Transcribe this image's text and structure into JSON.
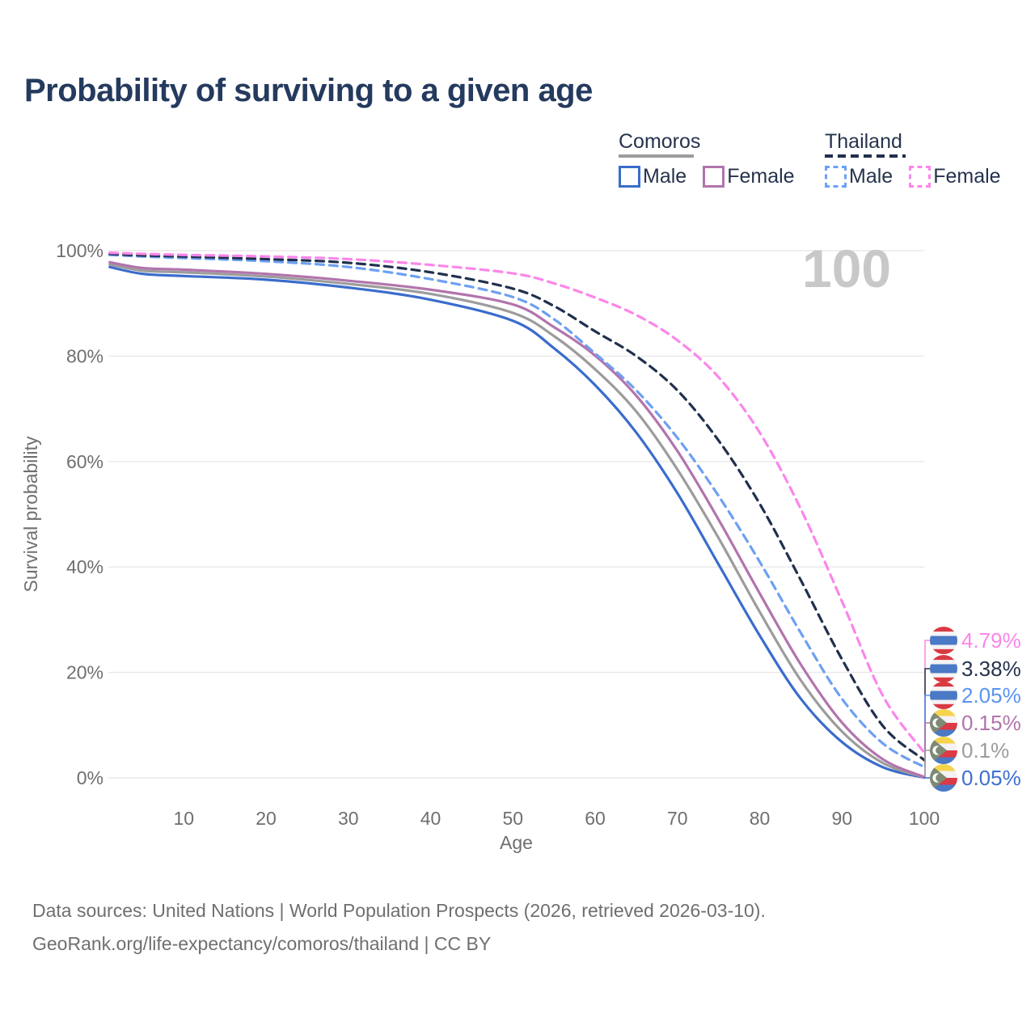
{
  "title": "Probability of surviving to a given age",
  "watermark": "100",
  "legend": {
    "comoros": {
      "title": "Comoros",
      "male_label": "Male",
      "female_label": "Female",
      "male_color": "#3a6ccc",
      "female_color": "#b274ac",
      "underline_color": "#9c9c9c",
      "underline_style": "solid"
    },
    "thailand": {
      "title": "Thailand",
      "male_label": "Male",
      "female_label": "Female",
      "male_color": "#6da0f2",
      "female_color": "#fb86ea",
      "underline_color": "#20304e",
      "underline_style": "dashed"
    }
  },
  "chart_data": {
    "type": "line",
    "title": "Probability of surviving to a given age",
    "xlabel": "Age",
    "ylabel": "Survival probability",
    "xlim": [
      0,
      100
    ],
    "ylim": [
      0,
      100
    ],
    "grid": true,
    "x_ticks": [
      10,
      20,
      30,
      40,
      50,
      60,
      70,
      80,
      90,
      100
    ],
    "y_ticks": [
      0,
      20,
      40,
      60,
      80,
      100
    ],
    "y_tick_suffix": "%",
    "x": [
      1,
      5,
      10,
      20,
      30,
      40,
      50,
      55,
      60,
      65,
      70,
      75,
      80,
      85,
      90,
      95,
      100
    ],
    "series": [
      {
        "name": "Comoros Male",
        "country": "comoros",
        "sex": "male",
        "style": "solid",
        "color": "#3a6ccc",
        "values": [
          96.9,
          95.6,
          95.2,
          94.5,
          93.0,
          90.7,
          86.7,
          81.5,
          74.5,
          65.5,
          54.0,
          40.5,
          27.0,
          15.0,
          6.8,
          2.0,
          0.05
        ]
      },
      {
        "name": "Comoros Both sexes",
        "country": "comoros",
        "sex": "both",
        "style": "solid",
        "color": "#9c9c9c",
        "values": [
          97.4,
          96.2,
          95.9,
          95.1,
          93.7,
          91.8,
          88.2,
          83.8,
          77.5,
          69.5,
          58.5,
          45.5,
          31.5,
          18.5,
          8.8,
          2.8,
          0.1
        ]
      },
      {
        "name": "Comoros Female",
        "country": "comoros",
        "sex": "female",
        "style": "solid",
        "color": "#b274ac",
        "values": [
          97.8,
          96.7,
          96.4,
          95.6,
          94.3,
          92.6,
          89.8,
          85.5,
          80.1,
          72.5,
          62.0,
          49.0,
          35.0,
          21.5,
          10.5,
          3.5,
          0.15
        ]
      },
      {
        "name": "Thailand Male",
        "country": "thailand",
        "sex": "male",
        "style": "dashed",
        "color": "#6da0f2",
        "values": [
          99.2,
          98.9,
          98.6,
          98.0,
          96.9,
          94.6,
          91.2,
          87.0,
          80.5,
          73.5,
          64.5,
          53.5,
          41.0,
          27.5,
          15.0,
          6.5,
          2.05
        ]
      },
      {
        "name": "Thailand Both sexes",
        "country": "thailand",
        "sex": "both",
        "style": "dashed",
        "color": "#20304e",
        "values": [
          99.4,
          99.1,
          98.9,
          98.4,
          97.7,
          95.9,
          92.8,
          89.5,
          84.7,
          80.0,
          73.5,
          64.0,
          52.0,
          37.5,
          22.5,
          9.8,
          3.38
        ]
      },
      {
        "name": "Thailand Female",
        "country": "thailand",
        "sex": "female",
        "style": "dashed",
        "color": "#fb86ea",
        "values": [
          99.6,
          99.4,
          99.2,
          98.9,
          98.4,
          97.3,
          95.7,
          93.8,
          91.1,
          87.8,
          83.0,
          76.0,
          65.5,
          51.0,
          33.5,
          15.5,
          4.79
        ]
      }
    ]
  },
  "annotations": [
    {
      "flag": "thailand",
      "value": "4.79%",
      "end_value": 4.79,
      "color": "#fb86ea"
    },
    {
      "flag": "thailand",
      "value": "3.38%",
      "end_value": 3.38,
      "color": "#26334d"
    },
    {
      "flag": "thailand",
      "value": "2.05%",
      "end_value": 2.05,
      "color": "#5b93f0"
    },
    {
      "flag": "comoros",
      "value": "0.15%",
      "end_value": 0.15,
      "color": "#b274ac"
    },
    {
      "flag": "comoros",
      "value": "0.1%",
      "end_value": 0.1,
      "color": "#9c9c9c"
    },
    {
      "flag": "comoros",
      "value": "0.05%",
      "end_value": 0.05,
      "color": "#3f6fd0"
    }
  ],
  "footer": {
    "line1": "Data sources: United Nations | World Population Prospects (2026, retrieved 2026-03-10).",
    "line2": "GeoRank.org/life-expectancy/comoros/thailand | CC BY"
  }
}
